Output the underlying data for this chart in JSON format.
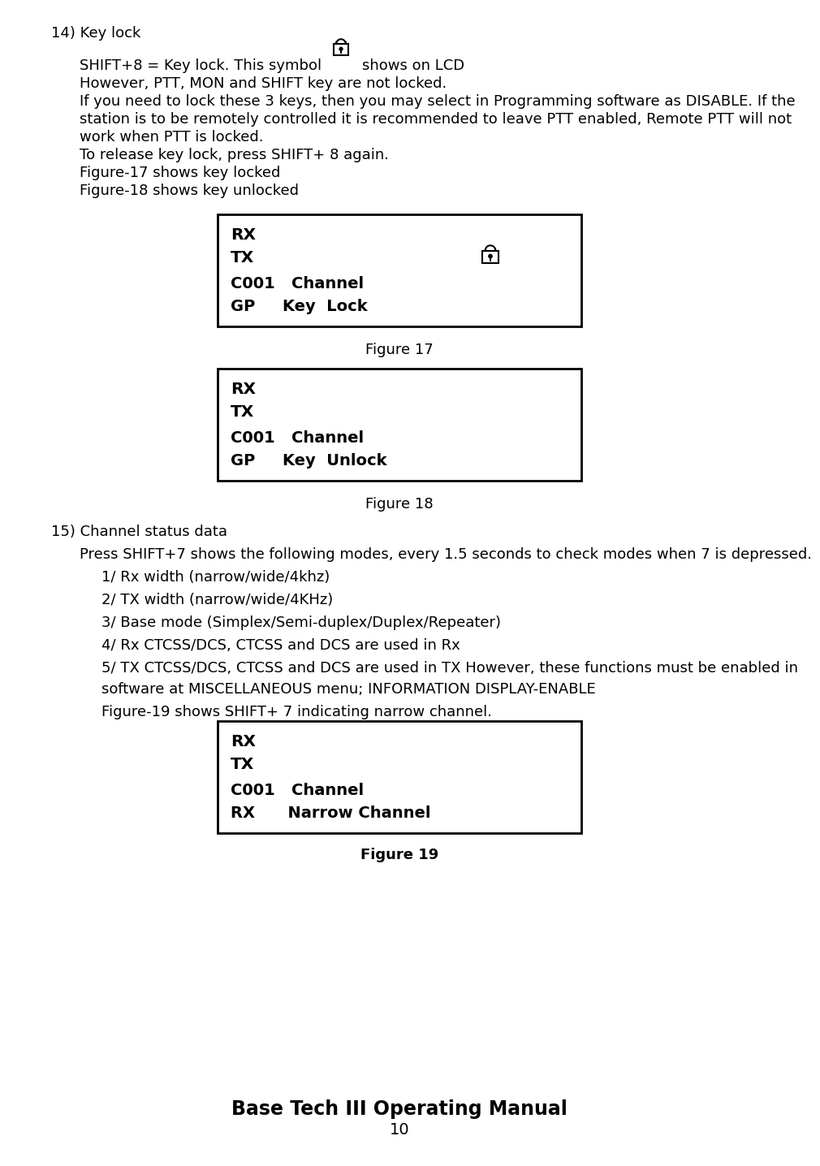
{
  "bg_color": "#ffffff",
  "text_color": "#000000",
  "title_section": "14) Key lock",
  "p1_line1_before": "SHIFT+8 = Key lock. This symbol",
  "p1_line1_after": "shows on LCD",
  "paragraph1_line2": "However, PTT, MON and SHIFT key are not locked.",
  "paragraph1_line3": "If you need to lock these 3 keys, then you may select in Programming software as DISABLE. If the",
  "paragraph1_line4": "station is to be remotely controlled it is recommended to leave PTT enabled, Remote PTT will not",
  "paragraph1_line5": "work when PTT is locked.",
  "paragraph1_line6": "To release key lock, press SHIFT+ 8 again.",
  "paragraph1_line7": "Figure-17 shows key locked",
  "paragraph1_line8": "Figure-18 shows key unlocked",
  "fig17_rx": "RX",
  "fig17_tx": "TX",
  "fig17_line3": "C001   Channel",
  "fig17_line4": "GP     Key  Lock",
  "fig17_caption": "Figure 17",
  "fig18_rx": "RX",
  "fig18_tx": "TX",
  "fig18_line3": "C001   Channel",
  "fig18_line4": "GP     Key  Unlock",
  "fig18_caption": "Figure 18",
  "section15_title": "15) Channel status data",
  "section15_line1": "Press SHIFT+7 shows the following modes, every 1.5 seconds to check modes when 7 is depressed.",
  "section15_item1": "1/ Rx width (narrow/wide/4khz)",
  "section15_item2": "2/ TX width (narrow/wide/4KHz)",
  "section15_item3": "3/ Base mode (Simplex/Semi-duplex/Duplex/Repeater)",
  "section15_item4": "4/ Rx CTCSS/DCS, CTCSS and DCS are used in Rx",
  "section15_item5a": "5/ TX CTCSS/DCS, CTCSS and DCS are used in TX However, these functions must be enabled in",
  "section15_item5b": "software at MISCELLANEOUS menu; INFORMATION DISPLAY-ENABLE",
  "section15_fig19_pre": "Figure-19 shows SHIFT+ 7 indicating narrow channel.",
  "fig19_rx": "RX",
  "fig19_tx": "TX",
  "fig19_line3": "C001   Channel",
  "fig19_line4": "RX      Narrow Channel",
  "fig19_caption": "Figure 19",
  "footer_title": "Base Tech III Operating Manual",
  "footer_page": "10"
}
